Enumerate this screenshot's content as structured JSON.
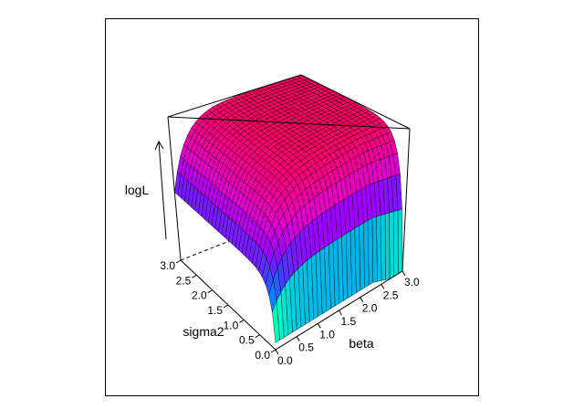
{
  "chart_data": {
    "type": "surface3d",
    "title": "",
    "xlabel": "beta",
    "ylabel": "sigma2",
    "zlabel": "logL",
    "xlim": [
      0.0,
      3.0
    ],
    "ylim": [
      0.0,
      3.0
    ],
    "x_ticks": [
      "0.0",
      "0.5",
      "1.0",
      "1.5",
      "2.0",
      "2.5",
      "3.0"
    ],
    "y_ticks": [
      "0.0",
      "0.5",
      "1.0",
      "1.5",
      "2.0",
      "2.5",
      "3.0"
    ],
    "grid_resolution": [
      30,
      30
    ],
    "colormap": "rainbow (green to blue to magenta to red)",
    "colors": {
      "low": "#00ff40",
      "mid": "#4040ff",
      "high": "#ff0060"
    },
    "box": true,
    "view": "perspective, beta increasing to the right-back, sigma2 increasing to the left-back",
    "surface_shape": "plateau of high logL for sigma2 > 0.5, falling steeply near sigma2 = 0 and beta = 0"
  }
}
